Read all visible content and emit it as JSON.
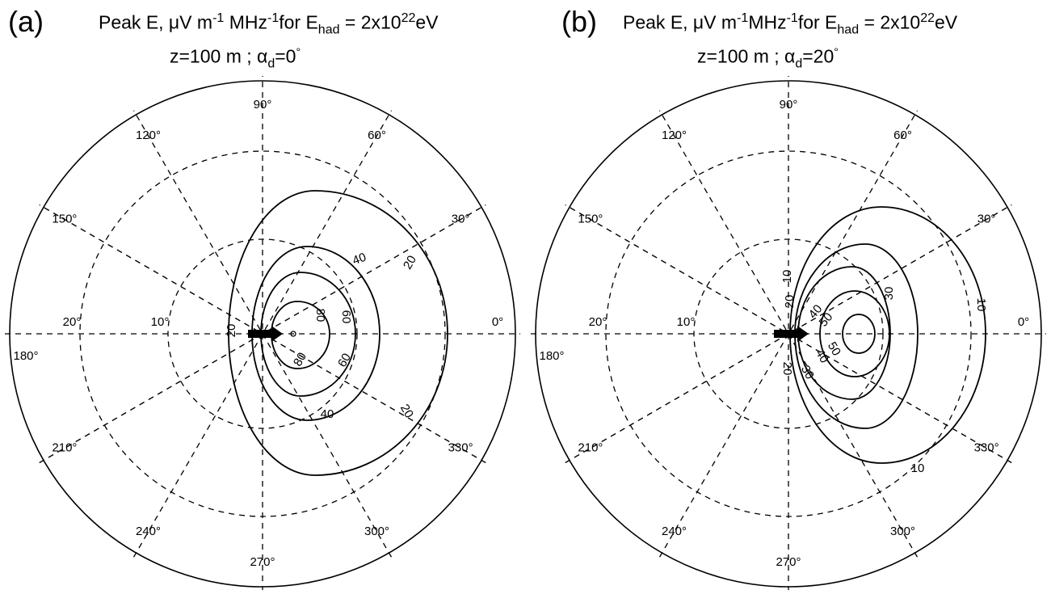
{
  "panels": [
    {
      "letter": "(a)",
      "title_prefix": "Peak E, μV m",
      "title_exp1": "-1",
      "title_mid": " MHz",
      "title_exp2": "-1",
      "title_for": "for E",
      "title_sub": "had",
      "title_eq": " = 2x10",
      "title_exp3": "22",
      "title_unit": "eV",
      "subtitle_z": "z=100 m ; α",
      "subtitle_sub": "d",
      "subtitle_val": "=0",
      "subtitle_deg": "°",
      "angle_labels": [
        "0°",
        "30°",
        "60°",
        "90°",
        "120°",
        "150°",
        "180°",
        "210°",
        "240°",
        "270°",
        "300°",
        "330°"
      ],
      "radial_labels": [
        "10°",
        "20°"
      ],
      "contours": [
        {
          "level": "20",
          "labels": [
            "20",
            "20",
            "20"
          ]
        },
        {
          "level": "40",
          "labels": [
            "40",
            "40"
          ]
        },
        {
          "level": "60",
          "labels": [
            "60",
            "60"
          ]
        },
        {
          "level": "80",
          "labels": [
            "80",
            "80"
          ]
        }
      ]
    },
    {
      "letter": "(b)",
      "title_prefix": "Peak E, μV m",
      "title_exp1": "-1",
      "title_mid": "MHz",
      "title_exp2": "-1",
      "title_for": "for E",
      "title_sub": "had",
      "title_eq": " = 2x10",
      "title_exp3": "22",
      "title_unit": "eV",
      "subtitle_z": "z=100 m ; α",
      "subtitle_sub": "d",
      "subtitle_val": "=20",
      "subtitle_deg": "°",
      "angle_labels": [
        "0°",
        "30°",
        "60°",
        "90°",
        "120°",
        "150°",
        "180°",
        "210°",
        "240°",
        "270°",
        "300°",
        "330°"
      ],
      "radial_labels": [
        "10°",
        "20°"
      ],
      "contours": [
        {
          "level": "10",
          "labels": [
            "10",
            "10",
            "10"
          ]
        },
        {
          "level": "20",
          "labels": [
            "20",
            "20"
          ]
        },
        {
          "level": "30",
          "labels": [
            "30",
            "30"
          ]
        },
        {
          "level": "40",
          "labels": [
            "40",
            "40"
          ]
        },
        {
          "level": "50",
          "labels": [
            "50",
            "50"
          ]
        }
      ]
    }
  ]
}
